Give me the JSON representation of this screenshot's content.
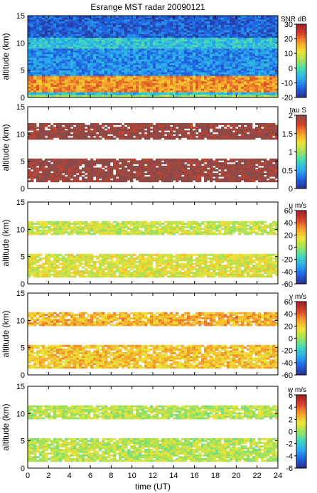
{
  "title": "Esrange MST radar 20090121",
  "xlabel": "time (UT)",
  "x_ticks": [
    "0",
    "2",
    "4",
    "6",
    "8",
    "10",
    "12",
    "14",
    "16",
    "18",
    "20",
    "22",
    "24"
  ],
  "chart_data": [
    {
      "type": "heatmap",
      "title": "Esrange MST radar 20090121",
      "ylabel": "altitude (km)",
      "colorbar_label": "SNR dB",
      "xlim": [
        0,
        24
      ],
      "ylim": [
        0,
        15
      ],
      "y_ticks": [
        "0",
        "5",
        "10",
        "15"
      ],
      "clim": [
        -20,
        30
      ],
      "colorbar_ticks": [
        "30",
        "20",
        "10",
        "0",
        "-10",
        "-20"
      ],
      "coverage": "full",
      "colormap": [
        "#2a2f8f",
        "#1f5fe0",
        "#2aa8ef",
        "#3fd6c0",
        "#9be25a",
        "#f1e338",
        "#f5a02a",
        "#d8402a",
        "#a01f2a"
      ],
      "layers": [
        {
          "alt_range_km": [
            0.0,
            0.5
          ],
          "typical_value": 5
        },
        {
          "alt_range_km": [
            0.5,
            1.0
          ],
          "typical_value": -5
        },
        {
          "alt_range_km": [
            1.0,
            4.0
          ],
          "typical_value": 18
        },
        {
          "alt_range_km": [
            4.0,
            9.0
          ],
          "typical_value": -10
        },
        {
          "alt_range_km": [
            9.0,
            11.0
          ],
          "typical_value": -4
        },
        {
          "alt_range_km": [
            11.0,
            15.0
          ],
          "typical_value": -14
        }
      ]
    },
    {
      "type": "heatmap",
      "ylabel": "altitude (km)",
      "colorbar_label": "tau S",
      "xlim": [
        0,
        24
      ],
      "ylim": [
        0,
        15
      ],
      "y_ticks": [
        "0",
        "5",
        "10",
        "15"
      ],
      "clim": [
        0,
        2
      ],
      "colorbar_ticks": [
        "2",
        "1.5",
        "1",
        "0.5",
        "0"
      ],
      "coverage": "echo_layers",
      "colormap": [
        "#2a2f8f",
        "#1f5fe0",
        "#2aa8ef",
        "#3fd6c0",
        "#9be25a",
        "#f1e338",
        "#f5a02a",
        "#d8402a",
        "#8b4a48"
      ],
      "layers": [
        {
          "alt_range_km": [
            1.2,
            5.5
          ],
          "typical_value": 2
        },
        {
          "alt_range_km": [
            9.0,
            12.0
          ],
          "typical_value": 2
        }
      ]
    },
    {
      "type": "heatmap",
      "ylabel": "altitude (km)",
      "colorbar_label": "u m/s",
      "xlim": [
        0,
        24
      ],
      "ylim": [
        0,
        15
      ],
      "y_ticks": [
        "0",
        "5",
        "10",
        "15"
      ],
      "clim": [
        -60,
        60
      ],
      "colorbar_ticks": [
        "60",
        "40",
        "20",
        "0",
        "-20",
        "-40",
        "-60"
      ],
      "coverage": "echo_layers",
      "colormap": [
        "#2a2f8f",
        "#1f5fe0",
        "#2aa8ef",
        "#3fd6c0",
        "#9be25a",
        "#f1e338",
        "#f5a02a",
        "#d8402a",
        "#a01f2a"
      ],
      "layers": [
        {
          "alt_range_km": [
            1.2,
            5.5
          ],
          "typical_value": 12
        },
        {
          "alt_range_km": [
            9.0,
            11.5
          ],
          "typical_value": 8
        }
      ]
    },
    {
      "type": "heatmap",
      "ylabel": "altitude (km)",
      "colorbar_label": "v m/s",
      "xlim": [
        0,
        24
      ],
      "ylim": [
        0,
        15
      ],
      "y_ticks": [
        "0",
        "5",
        "10",
        "15"
      ],
      "clim": [
        -60,
        60
      ],
      "colorbar_ticks": [
        "60",
        "40",
        "20",
        "0",
        "-20",
        "-40",
        "-60"
      ],
      "coverage": "echo_layers",
      "colormap": [
        "#2a2f8f",
        "#1f5fe0",
        "#2aa8ef",
        "#3fd6c0",
        "#9be25a",
        "#f1e338",
        "#f5a02a",
        "#d8402a",
        "#a01f2a"
      ],
      "layers": [
        {
          "alt_range_km": [
            1.2,
            5.5
          ],
          "typical_value": 22
        },
        {
          "alt_range_km": [
            9.0,
            11.5
          ],
          "typical_value": 26
        }
      ]
    },
    {
      "type": "heatmap",
      "ylabel": "altitude (km)",
      "colorbar_label": "w m/s",
      "xlim": [
        0,
        24
      ],
      "ylim": [
        0,
        15
      ],
      "y_ticks": [
        "0",
        "5",
        "10",
        "15"
      ],
      "clim": [
        -6,
        6
      ],
      "colorbar_ticks": [
        "6",
        "4",
        "2",
        "0",
        "-2",
        "-4",
        "-6"
      ],
      "coverage": "echo_layers",
      "colormap": [
        "#2a2f8f",
        "#1f5fe0",
        "#2aa8ef",
        "#3fd6c0",
        "#9be25a",
        "#f1e338",
        "#f5a02a",
        "#d8402a",
        "#a01f2a"
      ],
      "layers": [
        {
          "alt_range_km": [
            1.2,
            5.5
          ],
          "typical_value": 0.5
        },
        {
          "alt_range_km": [
            9.0,
            11.5
          ],
          "typical_value": 0.5
        }
      ]
    }
  ]
}
